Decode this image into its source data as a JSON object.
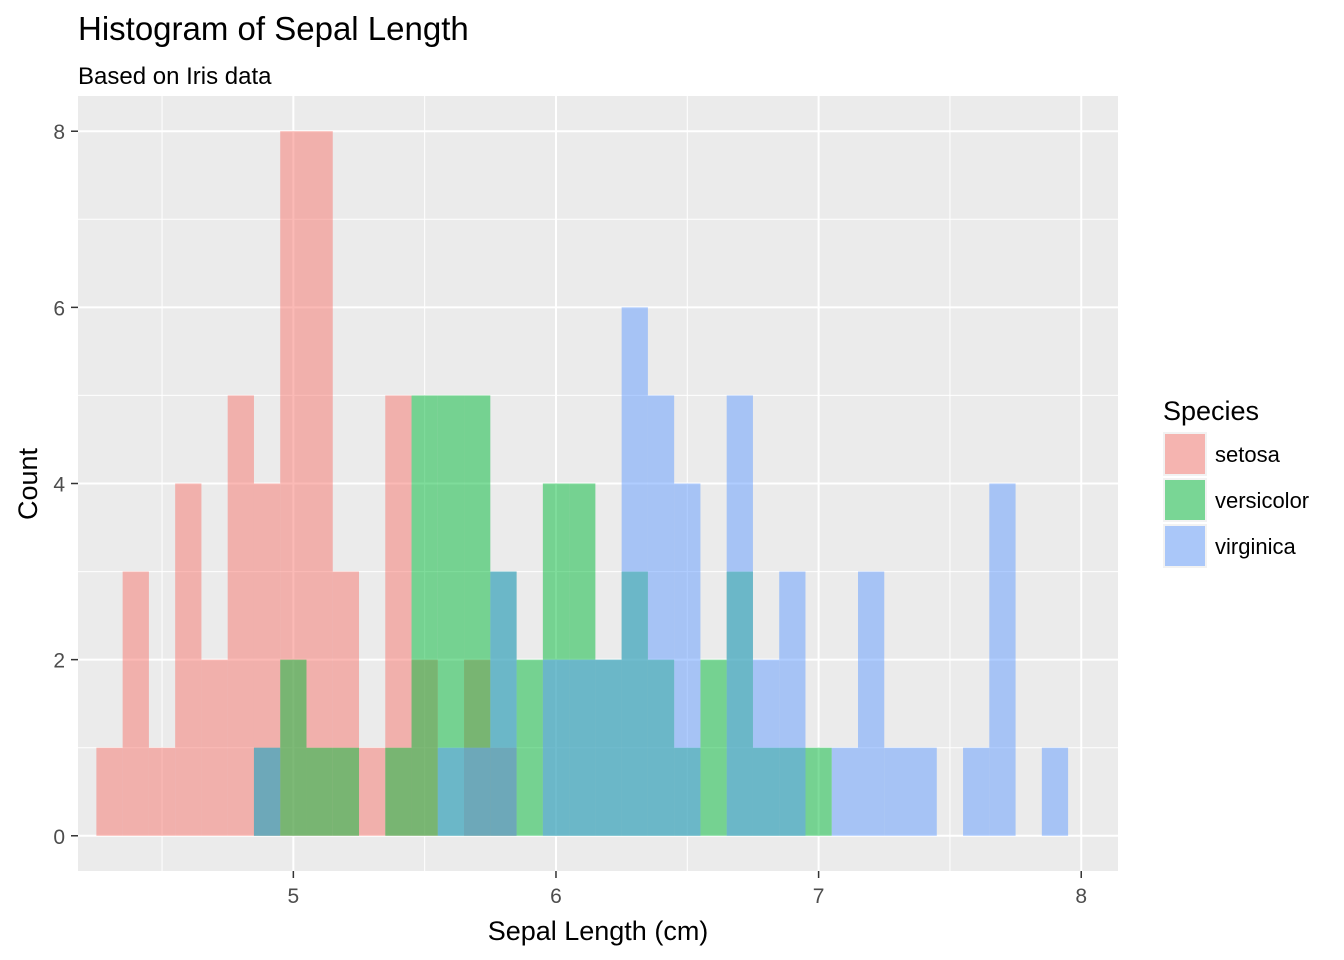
{
  "chart_data": {
    "type": "bar",
    "subtype": "histogram",
    "title": "Histogram of Sepal Length",
    "subtitle": "Based on Iris data",
    "xlabel": "Sepal Length (cm)",
    "ylabel": "Count",
    "xlim": [
      4.18,
      8.14
    ],
    "ylim": [
      -0.4,
      8.4
    ],
    "x_ticks": [
      5,
      6,
      7,
      8
    ],
    "x_minor": [
      4.5,
      5.5,
      6.5,
      7.5
    ],
    "y_ticks": [
      0,
      2,
      4,
      6,
      8
    ],
    "y_minor": [
      1,
      3,
      5,
      7
    ],
    "grid": true,
    "bin_width": 0.1,
    "bar_opacity": 0.5,
    "legend": {
      "title": "Species",
      "position": "right"
    },
    "series": [
      {
        "name": "setosa",
        "color": "#F8766D",
        "bins": [
          [
            4.3,
            1
          ],
          [
            4.4,
            3
          ],
          [
            4.5,
            1
          ],
          [
            4.6,
            4
          ],
          [
            4.7,
            2
          ],
          [
            4.8,
            5
          ],
          [
            4.9,
            4
          ],
          [
            5.0,
            8
          ],
          [
            5.1,
            8
          ],
          [
            5.2,
            3
          ],
          [
            5.3,
            1
          ],
          [
            5.4,
            5
          ],
          [
            5.5,
            2
          ],
          [
            5.7,
            2
          ],
          [
            5.8,
            1
          ]
        ]
      },
      {
        "name": "versicolor",
        "color": "#00BA38",
        "bins": [
          [
            4.9,
            1
          ],
          [
            5.0,
            2
          ],
          [
            5.1,
            1
          ],
          [
            5.2,
            1
          ],
          [
            5.4,
            1
          ],
          [
            5.5,
            5
          ],
          [
            5.6,
            5
          ],
          [
            5.7,
            5
          ],
          [
            5.8,
            3
          ],
          [
            5.9,
            2
          ],
          [
            6.0,
            4
          ],
          [
            6.1,
            4
          ],
          [
            6.2,
            2
          ],
          [
            6.3,
            3
          ],
          [
            6.4,
            2
          ],
          [
            6.5,
            1
          ],
          [
            6.6,
            2
          ],
          [
            6.7,
            3
          ],
          [
            6.8,
            1
          ],
          [
            6.9,
            1
          ],
          [
            7.0,
            1
          ]
        ]
      },
      {
        "name": "virginica",
        "color": "#619CFF",
        "bins": [
          [
            4.9,
            1
          ],
          [
            5.6,
            1
          ],
          [
            5.7,
            1
          ],
          [
            5.8,
            3
          ],
          [
            6.0,
            2
          ],
          [
            6.1,
            2
          ],
          [
            6.2,
            2
          ],
          [
            6.3,
            6
          ],
          [
            6.4,
            5
          ],
          [
            6.5,
            4
          ],
          [
            6.7,
            5
          ],
          [
            6.8,
            2
          ],
          [
            6.9,
            3
          ],
          [
            7.1,
            1
          ],
          [
            7.2,
            3
          ],
          [
            7.3,
            1
          ],
          [
            7.4,
            1
          ],
          [
            7.6,
            1
          ],
          [
            7.7,
            4
          ],
          [
            7.9,
            1
          ]
        ]
      }
    ]
  }
}
